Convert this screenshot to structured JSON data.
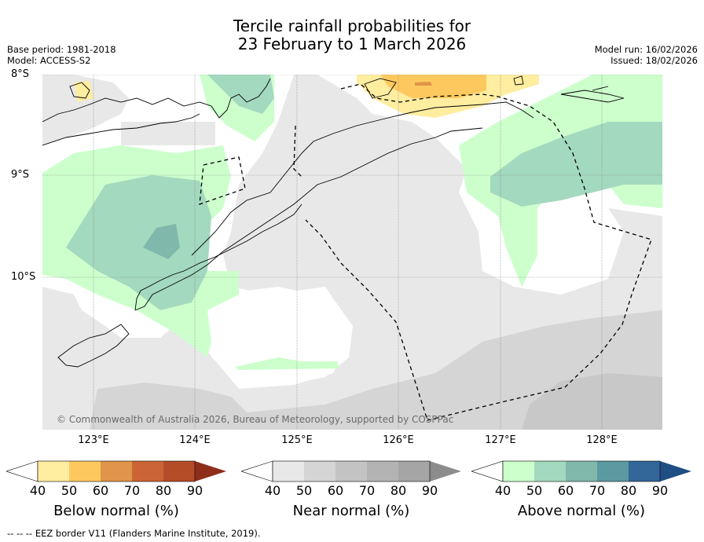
{
  "title": {
    "line1": "Tercile rainfall probabilities for",
    "line2": "23 February to 1 March 2026"
  },
  "meta": {
    "base_period": "Base period: 1981-2018",
    "model": "Model: ACCESS-S2",
    "model_run": "Model run: 16/02/2026",
    "issued": "Issued: 18/02/2026"
  },
  "map": {
    "lat_labels": [
      "8°S",
      "9°S",
      "10°S"
    ],
    "lon_labels": [
      "123°E",
      "124°E",
      "125°E",
      "126°E",
      "127°E",
      "128°E"
    ],
    "copyright": "© Commonwealth of Australia 2026, Bureau of Meteorology, supported by COSPPac"
  },
  "colorbars": [
    {
      "name": "below",
      "title": "Below normal (%)",
      "ticks": [
        "40",
        "50",
        "60",
        "70",
        "80",
        "90"
      ],
      "colors": [
        "#ffffff",
        "#ffeda0",
        "#fdc95f",
        "#e0954a",
        "#cc6535",
        "#b44c28",
        "#8e2e1a"
      ]
    },
    {
      "name": "near",
      "title": "Near normal (%)",
      "ticks": [
        "40",
        "50",
        "60",
        "70",
        "80",
        "90"
      ],
      "colors": [
        "#ffffff",
        "#e8e8e8",
        "#d5d5d5",
        "#c3c3c3",
        "#b3b3b3",
        "#a5a5a5",
        "#8c8c8c"
      ]
    },
    {
      "name": "above",
      "title": "Above normal (%)",
      "ticks": [
        "40",
        "50",
        "60",
        "70",
        "80",
        "90"
      ],
      "colors": [
        "#ffffff",
        "#ccffcc",
        "#a3d9be",
        "#80b8ab",
        "#5b9aa0",
        "#336699",
        "#1f4e85"
      ]
    }
  ],
  "footnote": "--  --  -- EEZ border V11 (Flanders Marine Institute, 2019)."
}
